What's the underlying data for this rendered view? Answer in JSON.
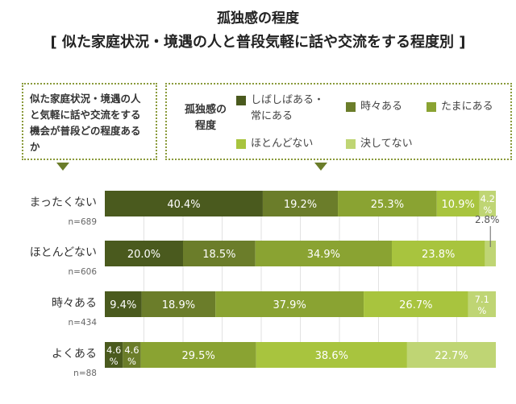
{
  "chart_data": {
    "type": "bar",
    "orientation": "horizontal",
    "stacked": true,
    "title": "孤独感の程度",
    "subtitle": "[ 似た家庭状況・境遇の人と普段気軽に話や交流をする程度別 ]",
    "xlim": [
      0,
      100
    ],
    "grid": true,
    "legend_title": "孤独感の程度",
    "legend_placement": "top",
    "category_axis_title": "似た家庭状況・境遇の人と気軽に話や交流をする機会が普段どの程度あるか",
    "categories": [
      "まったくない",
      "ほとんどない",
      "時々ある",
      "よくある"
    ],
    "sample_sizes": [
      "n=689",
      "n=606",
      "n=434",
      "n=88"
    ],
    "series": [
      {
        "name": "しばしばある・常にある",
        "color": "#4a5a1e",
        "values": [
          40.4,
          20.0,
          9.4,
          4.6
        ]
      },
      {
        "name": "時々ある",
        "color": "#6b7d2a",
        "values": [
          19.2,
          18.5,
          18.9,
          4.6
        ]
      },
      {
        "name": "たまにある",
        "color": "#8aa332",
        "values": [
          25.3,
          34.9,
          37.9,
          29.5
        ]
      },
      {
        "name": "ほとんどない",
        "color": "#a8c43e",
        "values": [
          10.9,
          23.8,
          26.7,
          38.6
        ]
      },
      {
        "name": "決してない",
        "color": "#bfd574",
        "values": [
          4.2,
          2.8,
          7.1,
          22.7
        ]
      }
    ]
  }
}
